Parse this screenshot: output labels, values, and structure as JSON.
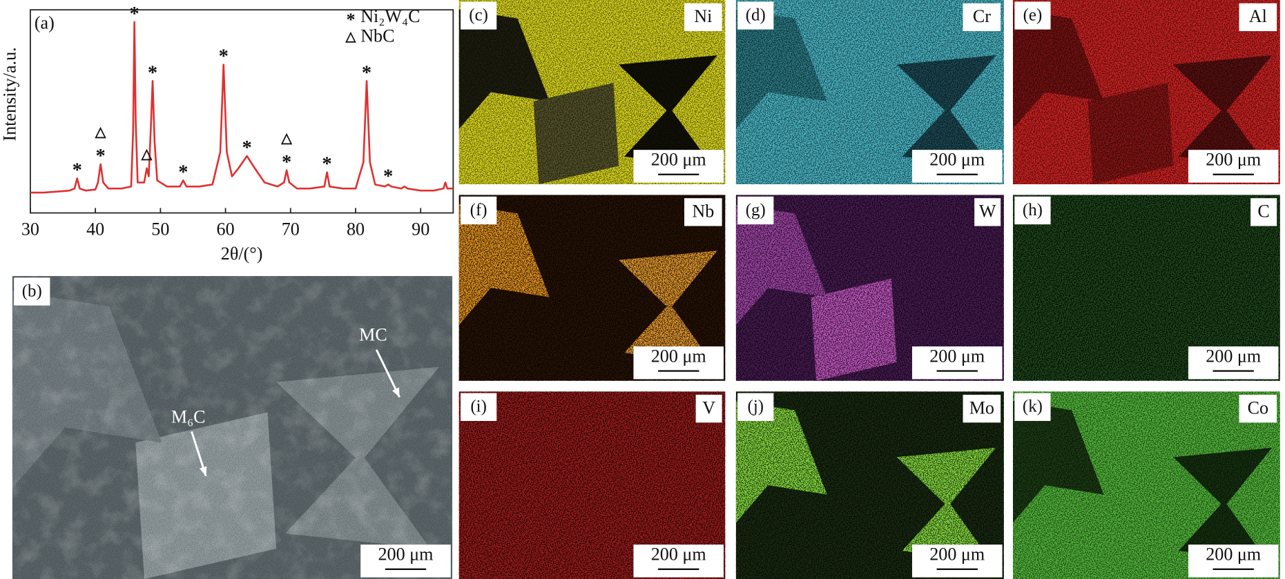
{
  "chart_data": {
    "type": "line",
    "panel_label": "(a)",
    "x_label": "2θ/(°)",
    "y_label": "Intensity/a.u.",
    "xlim": [
      30,
      95
    ],
    "xticks": [
      30,
      40,
      50,
      60,
      70,
      80,
      90
    ],
    "ylim": [
      0,
      100
    ],
    "x": [
      30,
      32,
      34,
      36,
      36.8,
      37.2,
      37.6,
      38.5,
      40,
      40.4,
      40.8,
      41.2,
      42,
      44,
      45.5,
      45.8,
      46.0,
      46.2,
      46.5,
      47.5,
      47.9,
      48.2,
      48.5,
      48.8,
      49.1,
      49.5,
      51,
      53,
      53.5,
      54,
      56,
      58,
      59.2,
      59.7,
      60.2,
      61,
      62,
      63.3,
      64.5,
      66,
      68,
      69.0,
      69.4,
      69.8,
      71,
      73,
      75.2,
      75.6,
      76.0,
      78,
      80,
      81.2,
      81.7,
      82.2,
      83,
      84.5,
      85.0,
      85.5,
      87,
      87.5,
      88,
      90,
      92,
      93.5,
      93.8,
      94.1,
      95
    ],
    "series": [
      {
        "color": "#e03030",
        "values": [
          10,
          10,
          10.5,
          11,
          12,
          17,
          12,
          11,
          11.5,
          15,
          24,
          15,
          12,
          12,
          13,
          40,
          94,
          45,
          15,
          15,
          22,
          18,
          40,
          65,
          35,
          16,
          13,
          13,
          16,
          13,
          13,
          14,
          30,
          73,
          30,
          18,
          22,
          28,
          22,
          15,
          13,
          15,
          21,
          15,
          12,
          12,
          13,
          20,
          13,
          12,
          12,
          25,
          65,
          25,
          14,
          13,
          14,
          13,
          12,
          13,
          12,
          11,
          11,
          12,
          15,
          12,
          12
        ]
      }
    ],
    "phases": [
      {
        "name": "Ni₂W₄C",
        "symbol": "*",
        "peaks": [
          37.2,
          40.8,
          46.0,
          48.8,
          53.5,
          59.7,
          63.3,
          69.4,
          75.6,
          81.7,
          85.0
        ]
      },
      {
        "name": "NbC",
        "symbol": "△",
        "peaks": [
          40.8,
          47.9,
          69.4
        ]
      }
    ]
  },
  "panels": [
    {
      "label": "(b)",
      "scale_bar": "200 μm",
      "annotations": [
        "MC",
        "M₆C"
      ]
    },
    {
      "label": "(c)",
      "element": "Ni",
      "scale_bar": "200 μm"
    },
    {
      "label": "(d)",
      "element": "Cr",
      "scale_bar": "200 μm"
    },
    {
      "label": "(e)",
      "element": "Al",
      "scale_bar": "200 μm"
    },
    {
      "label": "(f)",
      "element": "Nb",
      "scale_bar": "200 μm"
    },
    {
      "label": "(g)",
      "element": "W",
      "scale_bar": "200 μm"
    },
    {
      "label": "(h)",
      "element": "C",
      "scale_bar": "200 μm"
    },
    {
      "label": "(i)",
      "element": "V",
      "scale_bar": "200 μm"
    },
    {
      "label": "(j)",
      "element": "Mo",
      "scale_bar": "200 μm"
    },
    {
      "label": "(k)",
      "element": "Co",
      "scale_bar": "200 μm"
    }
  ]
}
